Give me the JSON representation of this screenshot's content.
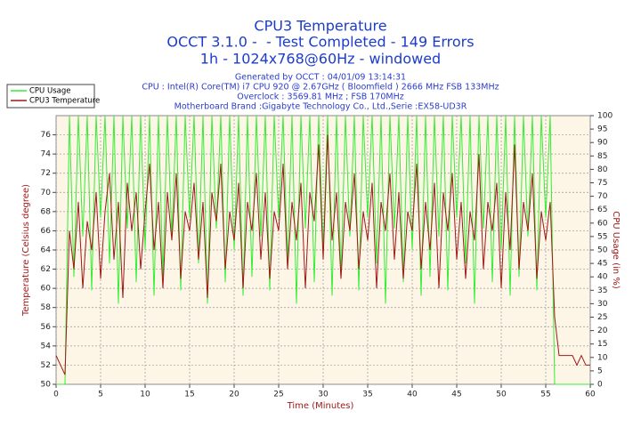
{
  "chart_data": {
    "type": "line",
    "title": "CPU3 Temperature",
    "subtitle": [
      "OCCT 3.1.0 -  - Test Completed - 149 Errors",
      "1h - 1024x768@60Hz - windowed"
    ],
    "annotations": [
      "Generated by OCCT : 04/01/09 13:14:31",
      "CPU : Intel(R) Core(TM) i7 CPU 920 @ 2.67GHz ( Bloomfield ) 2666 MHz FSB 133MHz",
      "Overclock : 3569.81 MHz ; FSB 170MHz",
      "Motherboard Brand :Gigabyte Technology Co., Ltd.,Serie :EX58-UD3R"
    ],
    "x_label": "Time (Minutes)",
    "y_label": "Temperature (Celsius degree)",
    "y2_label": "CPU Usage (in %)",
    "x": [
      0,
      0.5,
      1,
      1.5,
      2,
      2.5,
      3,
      3.5,
      4,
      4.5,
      5,
      5.5,
      6,
      6.5,
      7,
      7.5,
      8,
      8.5,
      9,
      9.5,
      10,
      10.5,
      11,
      11.5,
      12,
      12.5,
      13,
      13.5,
      14,
      14.5,
      15,
      15.5,
      16,
      16.5,
      17,
      17.5,
      18,
      18.5,
      19,
      19.5,
      20,
      20.5,
      21,
      21.5,
      22,
      22.5,
      23,
      23.5,
      24,
      24.5,
      25,
      25.5,
      26,
      26.5,
      27,
      27.5,
      28,
      28.5,
      29,
      29.5,
      30,
      30.5,
      31,
      31.5,
      32,
      32.5,
      33,
      33.5,
      34,
      34.5,
      35,
      35.5,
      36,
      36.5,
      37,
      37.5,
      38,
      38.5,
      39,
      39.5,
      40,
      40.5,
      41,
      41.5,
      42,
      42.5,
      43,
      43.5,
      44,
      44.5,
      45,
      45.5,
      46,
      46.5,
      47,
      47.5,
      48,
      48.5,
      49,
      49.5,
      50,
      50.5,
      51,
      51.5,
      52,
      52.5,
      53,
      53.5,
      54,
      54.5,
      55,
      55.5,
      56,
      56.5,
      57,
      57.5,
      58,
      58.5,
      59,
      59.5,
      60
    ],
    "series": [
      {
        "name": "CPU Usage",
        "color": "#33ee33",
        "axis": "y2",
        "values": [
          0,
          0,
          0,
          100,
          40,
          100,
          55,
          100,
          35,
          100,
          62,
          100,
          45,
          100,
          30,
          100,
          58,
          100,
          38,
          100,
          50,
          100,
          33,
          100,
          40,
          100,
          55,
          100,
          35,
          100,
          62,
          100,
          45,
          100,
          30,
          100,
          58,
          100,
          38,
          100,
          50,
          100,
          33,
          100,
          40,
          100,
          55,
          100,
          35,
          100,
          62,
          100,
          45,
          100,
          30,
          100,
          58,
          100,
          38,
          100,
          50,
          100,
          33,
          100,
          40,
          100,
          55,
          100,
          35,
          100,
          62,
          100,
          45,
          100,
          30,
          100,
          58,
          100,
          38,
          100,
          50,
          100,
          33,
          100,
          40,
          100,
          55,
          100,
          35,
          100,
          62,
          100,
          45,
          100,
          30,
          100,
          58,
          100,
          38,
          100,
          50,
          100,
          33,
          100,
          40,
          100,
          55,
          100,
          35,
          100,
          62,
          100,
          0,
          0,
          0,
          0,
          0,
          0,
          0,
          0,
          0
        ]
      },
      {
        "name": "CPU3 Temperature",
        "color": "#a01818",
        "values": [
          53,
          52,
          51,
          66,
          62,
          69,
          60,
          67,
          64,
          70,
          61,
          68,
          72,
          63,
          69,
          59,
          71,
          66,
          70,
          62,
          68,
          73,
          64,
          69,
          60,
          70,
          65,
          72,
          61,
          68,
          66,
          71,
          63,
          69,
          59,
          70,
          67,
          73,
          62,
          68,
          65,
          71,
          60,
          69,
          66,
          72,
          63,
          70,
          61,
          68,
          66,
          73,
          62,
          69,
          65,
          71,
          60,
          70,
          67,
          75,
          63,
          76,
          65,
          70,
          61,
          69,
          66,
          72,
          62,
          68,
          65,
          71,
          60,
          69,
          66,
          72,
          63,
          70,
          61,
          68,
          66,
          73,
          62,
          69,
          64,
          71,
          60,
          70,
          66,
          72,
          63,
          69,
          61,
          68,
          65,
          74,
          62,
          69,
          66,
          71,
          60,
          70,
          64,
          75,
          62,
          69,
          66,
          72,
          61,
          68,
          65,
          69,
          57,
          53,
          53,
          53,
          53,
          52,
          53,
          52,
          52
        ]
      }
    ],
    "xlim": [
      0,
      60
    ],
    "xticks": [
      0,
      5,
      10,
      15,
      20,
      25,
      30,
      35,
      40,
      45,
      50,
      55,
      60
    ],
    "ylim": [
      50,
      78
    ],
    "yticks": [
      50,
      52,
      54,
      56,
      58,
      60,
      62,
      64,
      66,
      68,
      70,
      72,
      74,
      76
    ],
    "y2lim": [
      0,
      100
    ],
    "y2ticks": [
      0,
      5,
      10,
      15,
      20,
      25,
      30,
      35,
      40,
      45,
      50,
      55,
      60,
      65,
      70,
      75,
      80,
      85,
      90,
      95,
      100
    ],
    "grid": true,
    "legend": "top-left"
  }
}
